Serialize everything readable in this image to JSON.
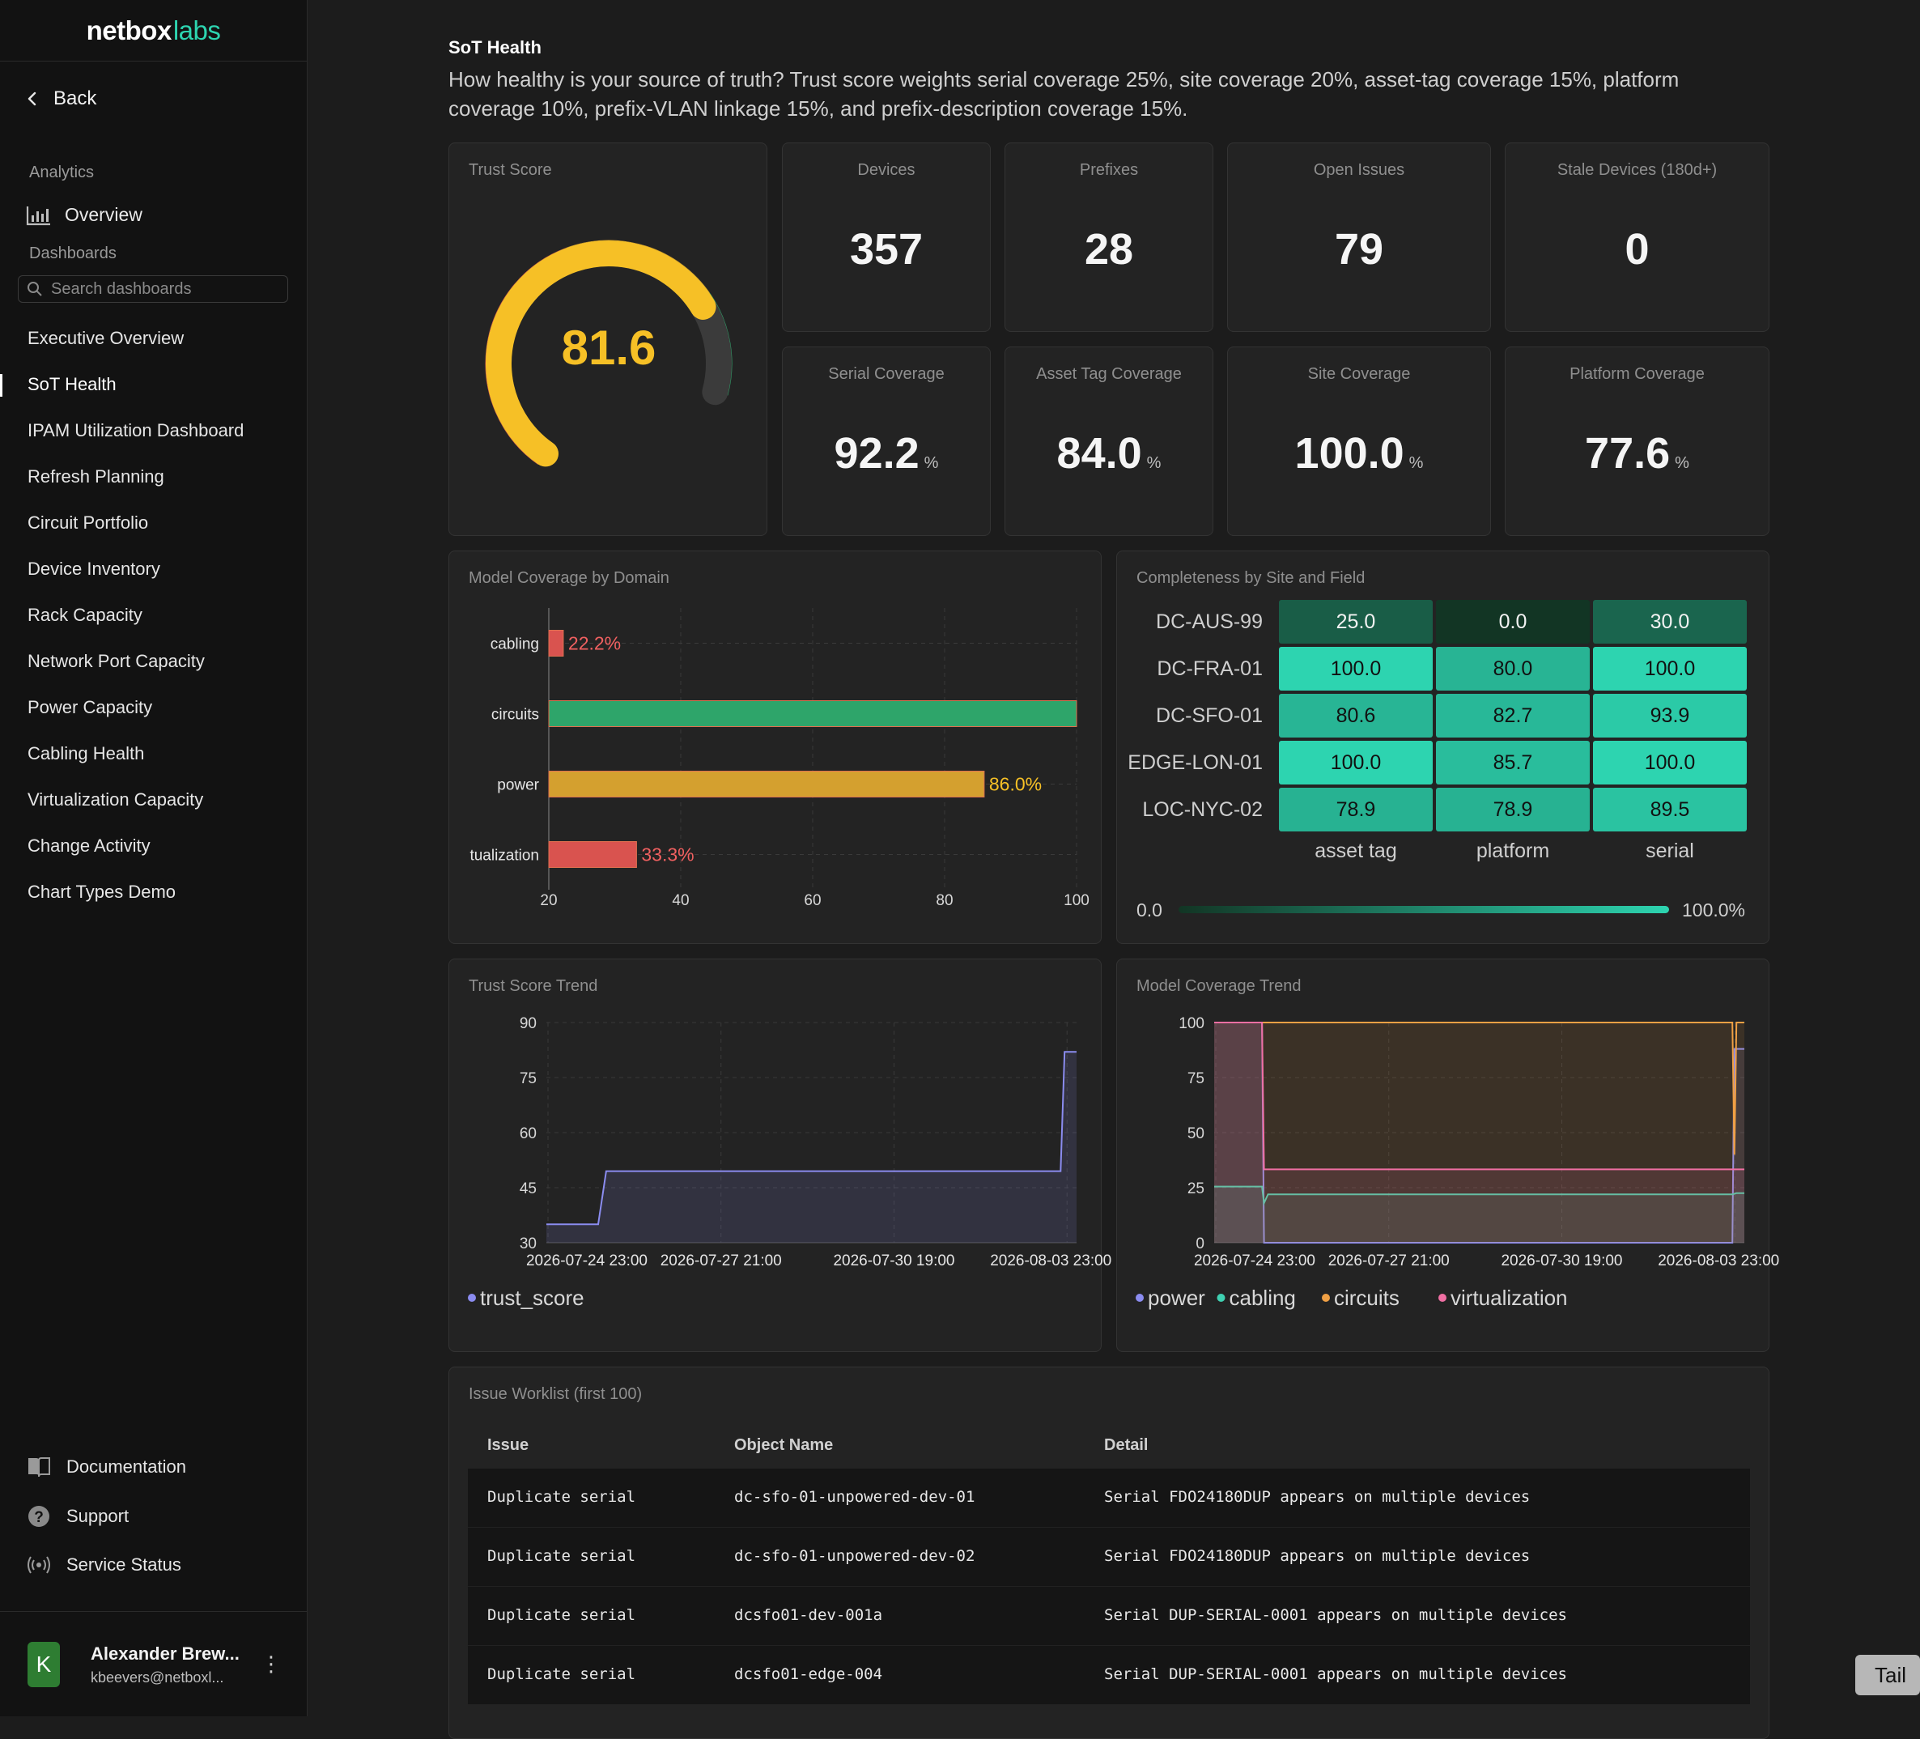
{
  "brand": {
    "word1": "netbox",
    "word2": "labs"
  },
  "sidebar": {
    "back_label": "Back",
    "analytics_label": "Analytics",
    "overview_label": "Overview",
    "dashboards_label": "Dashboards",
    "search_placeholder": "Search dashboards",
    "items": [
      {
        "label": "Executive Overview"
      },
      {
        "label": "SoT Health",
        "active": true
      },
      {
        "label": "IPAM Utilization Dashboard"
      },
      {
        "label": "Refresh Planning"
      },
      {
        "label": "Circuit Portfolio"
      },
      {
        "label": "Device Inventory"
      },
      {
        "label": "Rack Capacity"
      },
      {
        "label": "Network Port Capacity"
      },
      {
        "label": "Power Capacity"
      },
      {
        "label": "Cabling Health"
      },
      {
        "label": "Virtualization Capacity"
      },
      {
        "label": "Change Activity"
      },
      {
        "label": "Chart Types Demo"
      }
    ],
    "footer": {
      "documentation": "Documentation",
      "support": "Support",
      "service_status": "Service Status"
    },
    "user": {
      "initial": "K",
      "name": "Alexander Brew...",
      "email": "kbeevers@netboxl..."
    }
  },
  "page": {
    "title": "SoT Health",
    "description": "How healthy is your source of truth? Trust score weights serial coverage 25%, site coverage 20%, asset-tag coverage 15%, platform coverage 10%, prefix-VLAN linkage 15%, and prefix-description coverage 15%."
  },
  "trust_score": {
    "title": "Trust Score",
    "value": "81.6",
    "score": 81.6,
    "max": 100
  },
  "stats": {
    "devices": {
      "title": "Devices",
      "value": "357"
    },
    "prefixes": {
      "title": "Prefixes",
      "value": "28"
    },
    "open_issues": {
      "title": "Open Issues",
      "value": "79"
    },
    "stale_devices": {
      "title": "Stale Devices (180d+)",
      "value": "0"
    },
    "serial_coverage": {
      "title": "Serial Coverage",
      "value": "92.2",
      "unit": "%"
    },
    "asset_tag_coverage": {
      "title": "Asset Tag Coverage",
      "value": "84.0",
      "unit": "%"
    },
    "site_coverage": {
      "title": "Site Coverage",
      "value": "100.0",
      "unit": "%"
    },
    "platform_coverage": {
      "title": "Platform Coverage",
      "value": "77.6",
      "unit": "%"
    }
  },
  "colors": {
    "red": "#d9534f",
    "green": "#2ea56a",
    "amber": "#d4a02f",
    "gauge_fill": "#f6c026",
    "teal": "#2dd4b0",
    "power": "#8b8cf0",
    "cabling": "#3fd1b2",
    "circuits": "#f0a044",
    "virtualization": "#f06fa3"
  },
  "chart_data": [
    {
      "type": "bar",
      "title": "Model Coverage by Domain",
      "orientation": "horizontal",
      "categories": [
        "cabling",
        "circuits",
        "power",
        "tualization"
      ],
      "values": [
        22.2,
        100,
        86.0,
        33.3
      ],
      "data_labels": [
        "22.2%",
        "",
        "86.0%",
        "33.3%"
      ],
      "bar_colors": [
        "#d9534f",
        "#2ea56a",
        "#d4a02f",
        "#d9534f"
      ],
      "label_colors": [
        "#f06060",
        "",
        "#f6c026",
        "#f06060"
      ],
      "xlim": [
        20,
        100
      ],
      "xticks": [
        20,
        40,
        60,
        80,
        100
      ],
      "grid": true
    },
    {
      "type": "heatmap",
      "title": "Completeness by Site and Field",
      "rows": [
        "DC-AUS-99",
        "DC-FRA-01",
        "DC-SFO-01",
        "EDGE-LON-01",
        "LOC-NYC-02"
      ],
      "columns": [
        "asset tag",
        "platform",
        "serial"
      ],
      "values": [
        [
          25.0,
          0.0,
          30.0
        ],
        [
          100.0,
          80.0,
          100.0
        ],
        [
          80.6,
          82.7,
          93.9
        ],
        [
          100.0,
          85.7,
          100.0
        ],
        [
          78.9,
          78.9,
          89.5
        ]
      ],
      "labels": [
        [
          "25.0",
          "0.0",
          "30.0"
        ],
        [
          "100.0",
          "80.0",
          "100.0"
        ],
        [
          "80.6",
          "82.7",
          "93.9"
        ],
        [
          "100.0",
          "85.7",
          "100.0"
        ],
        [
          "78.9",
          "78.9",
          "89.5"
        ]
      ],
      "scale_min_label": "0.0",
      "scale_max_label": "100.0%"
    },
    {
      "type": "line",
      "title": "Trust Score Trend",
      "xticks": [
        "2026-07-24 23:00",
        "2026-07-27 21:00",
        "2026-07-30 19:00",
        "2026-08-03 23:00"
      ],
      "ylim": [
        30,
        90
      ],
      "yticks": [
        30,
        45,
        60,
        75,
        90
      ],
      "xrange_days": [
        0,
        13.3
      ],
      "series": [
        {
          "name": "trust_score",
          "color": "#8b8cf0",
          "points": [
            [
              0,
              35
            ],
            [
              1.3,
              35
            ],
            [
              1.5,
              49.5
            ],
            [
              12.9,
              49.5
            ],
            [
              13.0,
              82
            ],
            [
              13.3,
              82
            ]
          ]
        }
      ]
    },
    {
      "type": "area",
      "title": "Model Coverage Trend",
      "xticks": [
        "2026-07-24 23:00",
        "2026-07-27 21:00",
        "2026-07-30 19:00",
        "2026-08-03 23:00"
      ],
      "ylim": [
        0,
        100
      ],
      "yticks": [
        0,
        25,
        50,
        75,
        100
      ],
      "xrange_days": [
        0,
        13.3
      ],
      "series": [
        {
          "name": "power",
          "color": "#8b8cf0",
          "points": [
            [
              0,
              100
            ],
            [
              1.2,
              100
            ],
            [
              1.25,
              0
            ],
            [
              13.0,
              0
            ],
            [
              13.05,
              88
            ],
            [
              13.3,
              88
            ]
          ]
        },
        {
          "name": "cabling",
          "color": "#3fd1b2",
          "points": [
            [
              0,
              25.5
            ],
            [
              1.2,
              25.5
            ],
            [
              1.25,
              18
            ],
            [
              1.35,
              22
            ],
            [
              13.0,
              22
            ],
            [
              13.1,
              22.5
            ],
            [
              13.3,
              22.5
            ]
          ]
        },
        {
          "name": "circuits",
          "color": "#f0a044",
          "points": [
            [
              0,
              100
            ],
            [
              1.2,
              100
            ],
            [
              1.25,
              100
            ],
            [
              13.0,
              100
            ],
            [
              13.05,
              40
            ],
            [
              13.1,
              100
            ],
            [
              13.3,
              100
            ]
          ]
        },
        {
          "name": "virtualization",
          "color": "#f06fa3",
          "points": [
            [
              0,
              100
            ],
            [
              1.2,
              100
            ],
            [
              1.25,
              33.3
            ],
            [
              13.3,
              33.3
            ]
          ]
        }
      ]
    }
  ],
  "worklist": {
    "title": "Issue Worklist (first 100)",
    "columns": [
      "Issue",
      "Object Name",
      "Detail"
    ],
    "rows": [
      {
        "issue": "Duplicate serial",
        "object": "dc-sfo-01-unpowered-dev-01",
        "detail": "Serial FDO24180DUP appears on multiple devices"
      },
      {
        "issue": "Duplicate serial",
        "object": "dc-sfo-01-unpowered-dev-02",
        "detail": "Serial FDO24180DUP appears on multiple devices"
      },
      {
        "issue": "Duplicate serial",
        "object": "dcsfo01-dev-001a",
        "detail": "Serial DUP-SERIAL-0001 appears on multiple devices"
      },
      {
        "issue": "Duplicate serial",
        "object": "dcsfo01-edge-004",
        "detail": "Serial DUP-SERIAL-0001 appears on multiple devices"
      }
    ]
  },
  "tail_button": "Tail"
}
